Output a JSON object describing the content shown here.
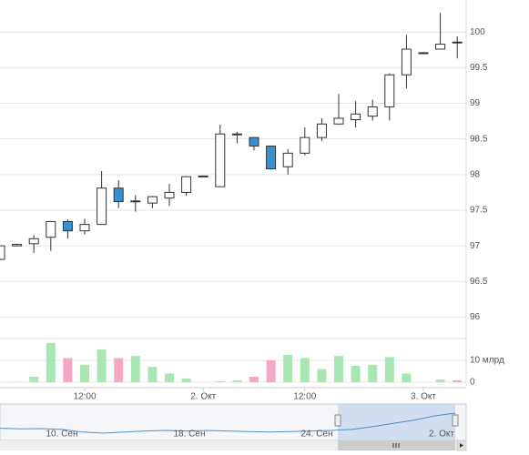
{
  "chart_data": {
    "type": "candlestick",
    "categories": [
      null,
      null,
      null,
      null,
      null,
      "12:00",
      null,
      null,
      null,
      null,
      null,
      null,
      "2. Окт",
      null,
      null,
      null,
      null,
      null,
      "12:00",
      null,
      null,
      null,
      null,
      null,
      null,
      "3. Окт",
      null,
      null
    ],
    "open": [
      96.81,
      97.0,
      97.03,
      97.12,
      97.34,
      97.21,
      97.3,
      97.81,
      97.62,
      97.6,
      97.67,
      97.75,
      97.97,
      97.83,
      98.56,
      98.52,
      98.4,
      98.11,
      98.3,
      98.52,
      98.71,
      98.77,
      98.82,
      98.95,
      99.4,
      99.7,
      99.76,
      99.86
    ],
    "high": [
      97.0,
      97.03,
      97.15,
      97.35,
      97.37,
      97.38,
      98.05,
      97.92,
      97.71,
      97.7,
      97.87,
      97.98,
      97.98,
      98.7,
      98.6,
      98.52,
      98.4,
      98.36,
      98.66,
      98.79,
      99.13,
      99.03,
      99.05,
      99.42,
      99.96,
      99.72,
      100.27,
      99.94
    ],
    "low": [
      96.8,
      96.99,
      96.9,
      96.93,
      97.1,
      97.16,
      97.3,
      97.53,
      97.48,
      97.53,
      97.56,
      97.7,
      97.97,
      97.83,
      98.44,
      98.34,
      98.07,
      98.0,
      98.27,
      98.47,
      98.7,
      98.66,
      98.76,
      98.76,
      99.21,
      99.69,
      99.76,
      99.63
    ],
    "close": [
      97.0,
      97.02,
      97.1,
      97.34,
      97.21,
      97.3,
      97.81,
      97.62,
      97.63,
      97.69,
      97.75,
      97.97,
      97.98,
      98.57,
      98.57,
      98.4,
      98.08,
      98.3,
      98.52,
      98.71,
      98.79,
      98.85,
      98.95,
      99.4,
      99.76,
      99.71,
      99.83,
      99.85
    ],
    "volume": [
      0,
      0.2,
      2.5,
      18,
      11,
      8,
      15,
      11,
      12,
      7,
      4,
      1.7,
      0,
      0.4,
      0.8,
      2.5,
      10,
      12.5,
      11,
      6,
      12,
      7.5,
      8,
      11.5,
      4,
      0,
      1.2,
      0.8
    ],
    "ylim": [
      95.75,
      100.45
    ],
    "yticks": [
      96,
      96.5,
      97,
      97.5,
      98,
      98.5,
      99,
      99.5,
      100
    ],
    "volume_ylim": [
      0,
      20
    ],
    "volume_yticks": [
      0,
      {
        "value": 10,
        "label": "10 млрд"
      }
    ],
    "up_color": "#ffffff",
    "down_color": "#3a8fcf",
    "volume_up_color": "#a8e6b4",
    "volume_down_color": "#f4a8c6",
    "grid": true,
    "navigator": {
      "labels": [
        "10. Сен",
        "18. Сен",
        "24. Сен",
        "2. Окт"
      ],
      "values": [
        97.0,
        96.9,
        96.95,
        96.8,
        96.3,
        96.1,
        96.3,
        96.5,
        96.6,
        96.5,
        96.6,
        96.5,
        96.4,
        96.3,
        96.4,
        96.5,
        96.6,
        96.8,
        97.3,
        97.9,
        98.5,
        99.3,
        99.8
      ],
      "color": "#4a8fc8"
    }
  }
}
